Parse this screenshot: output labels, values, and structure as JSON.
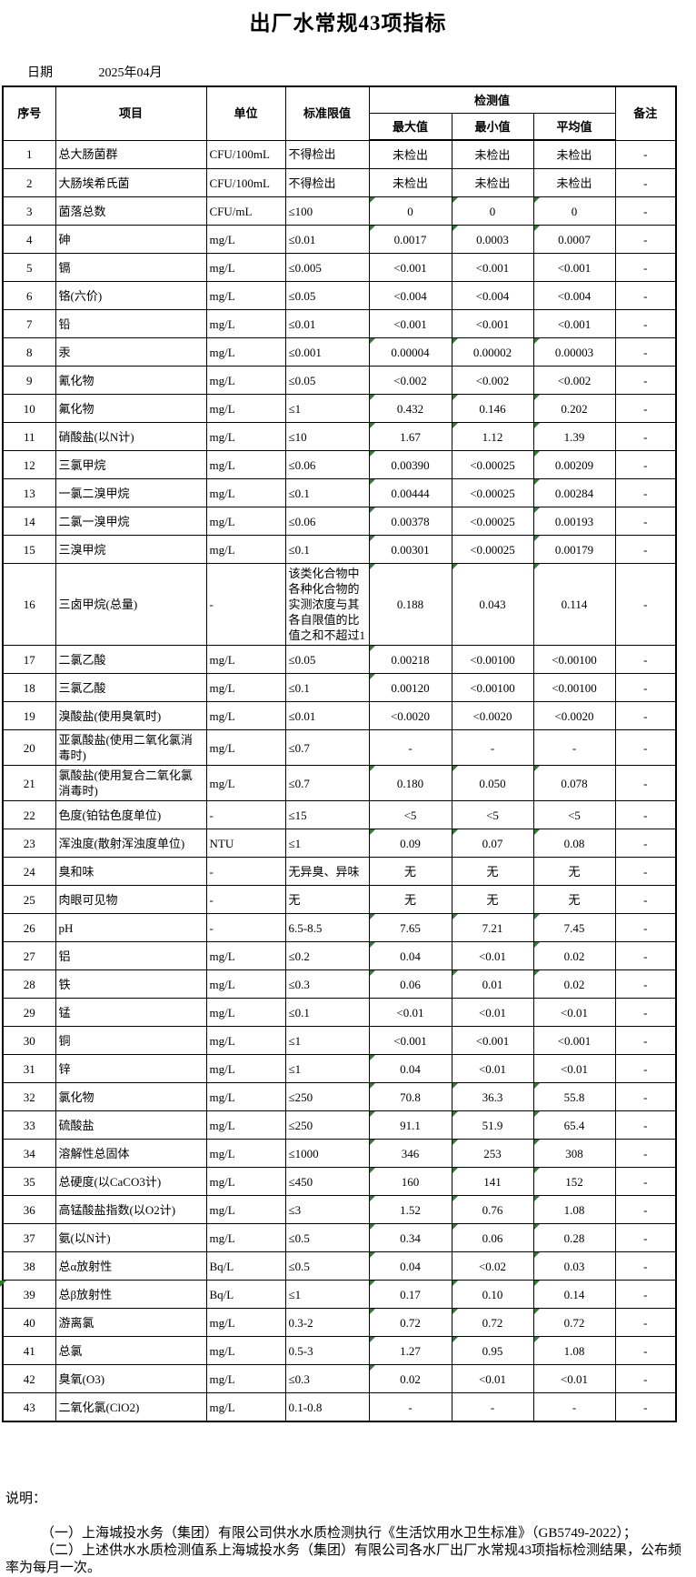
{
  "title": "出厂水常规43项指标",
  "date": {
    "label": "日期",
    "value": "2025年04月"
  },
  "colors": {
    "background": "#ffffff",
    "text": "#000000",
    "border": "#000000",
    "error_marker_green": "#2e7d32"
  },
  "table": {
    "headers": {
      "index": "序号",
      "item": "项目",
      "unit": "单位",
      "limit": "标准限值",
      "detection": "检测值",
      "max": "最大值",
      "min": "最小值",
      "avg": "平均值",
      "remark": "备注"
    },
    "rows": [
      {
        "no": "1",
        "item": "总大肠菌群",
        "unit": "CFU/100mL",
        "limit": "不得检出",
        "max": "未检出",
        "min": "未检出",
        "avg": "未检出",
        "remark": "-"
      },
      {
        "no": "2",
        "item": "大肠埃希氏菌",
        "unit": "CFU/100mL",
        "limit": "不得检出",
        "max": "未检出",
        "min": "未检出",
        "avg": "未检出",
        "remark": "-"
      },
      {
        "no": "3",
        "item": "菌落总数",
        "unit": "CFU/mL",
        "limit": "≤100",
        "max": "0",
        "min": "0",
        "avg": "0",
        "remark": "-"
      },
      {
        "no": "4",
        "item": "砷",
        "unit": "mg/L",
        "limit": "≤0.01",
        "max": "0.0017",
        "min": "0.0003",
        "avg": "0.0007",
        "remark": "-"
      },
      {
        "no": "5",
        "item": "镉",
        "unit": "mg/L",
        "limit": "≤0.005",
        "max": "<0.001",
        "min": "<0.001",
        "avg": "<0.001",
        "remark": "-"
      },
      {
        "no": "6",
        "item": "铬(六价)",
        "unit": "mg/L",
        "limit": "≤0.05",
        "max": "<0.004",
        "min": "<0.004",
        "avg": "<0.004",
        "remark": "-"
      },
      {
        "no": "7",
        "item": "铅",
        "unit": "mg/L",
        "limit": "≤0.01",
        "max": "<0.001",
        "min": "<0.001",
        "avg": "<0.001",
        "remark": "-"
      },
      {
        "no": "8",
        "item": "汞",
        "unit": "mg/L",
        "limit": "≤0.001",
        "max": "0.00004",
        "min": "0.00002",
        "avg": "0.00003",
        "remark": "-"
      },
      {
        "no": "9",
        "item": "氰化物",
        "unit": "mg/L",
        "limit": "≤0.05",
        "max": "<0.002",
        "min": "<0.002",
        "avg": "<0.002",
        "remark": "-"
      },
      {
        "no": "10",
        "item": "氟化物",
        "unit": "mg/L",
        "limit": "≤1",
        "max": "0.432",
        "min": "0.146",
        "avg": "0.202",
        "remark": "-"
      },
      {
        "no": "11",
        "item": "硝酸盐(以N计)",
        "unit": "mg/L",
        "limit": "≤10",
        "max": "1.67",
        "min": "1.12",
        "avg": "1.39",
        "remark": "-"
      },
      {
        "no": "12",
        "item": "三氯甲烷",
        "unit": "mg/L",
        "limit": "≤0.06",
        "max": "0.00390",
        "min": "<0.00025",
        "avg": "0.00209",
        "remark": "-"
      },
      {
        "no": "13",
        "item": "一氯二溴甲烷",
        "unit": "mg/L",
        "limit": "≤0.1",
        "max": "0.00444",
        "min": "<0.00025",
        "avg": "0.00284",
        "remark": "-"
      },
      {
        "no": "14",
        "item": "二氯一溴甲烷",
        "unit": "mg/L",
        "limit": "≤0.06",
        "max": "0.00378",
        "min": "<0.00025",
        "avg": "0.00193",
        "remark": "-"
      },
      {
        "no": "15",
        "item": "三溴甲烷",
        "unit": "mg/L",
        "limit": "≤0.1",
        "max": "0.00301",
        "min": "<0.00025",
        "avg": "0.00179",
        "remark": "-"
      },
      {
        "no": "16",
        "item": "三卤甲烷(总量)",
        "unit": "-",
        "limit": "该类化合物中各种化合物的实测浓度与其各自限值的比值之和不超过1",
        "max": "0.188",
        "min": "0.043",
        "avg": "0.114",
        "remark": "-"
      },
      {
        "no": "17",
        "item": "二氯乙酸",
        "unit": "mg/L",
        "limit": "≤0.05",
        "max": "0.00218",
        "min": "<0.00100",
        "avg": "<0.00100",
        "remark": "-"
      },
      {
        "no": "18",
        "item": "三氯乙酸",
        "unit": "mg/L",
        "limit": "≤0.1",
        "max": "0.00120",
        "min": "<0.00100",
        "avg": "<0.00100",
        "remark": "-"
      },
      {
        "no": "19",
        "item": "溴酸盐(使用臭氧时)",
        "unit": "mg/L",
        "limit": "≤0.01",
        "max": "<0.0020",
        "min": "<0.0020",
        "avg": "<0.0020",
        "remark": "-"
      },
      {
        "no": "20",
        "item": "亚氯酸盐(使用二氧化氯消毒时)",
        "unit": "mg/L",
        "limit": "≤0.7",
        "max": "-",
        "min": "-",
        "avg": "-",
        "remark": "-"
      },
      {
        "no": "21",
        "item": "氯酸盐(使用复合二氧化氯消毒时)",
        "unit": "mg/L",
        "limit": "≤0.7",
        "max": "0.180",
        "min": "0.050",
        "avg": "0.078",
        "remark": "-"
      },
      {
        "no": "22",
        "item": "色度(铂钴色度单位)",
        "unit": "-",
        "limit": "≤15",
        "max": "<5",
        "min": "<5",
        "avg": "<5",
        "remark": "-"
      },
      {
        "no": "23",
        "item": "浑浊度(散射浑浊度单位)",
        "unit": "NTU",
        "limit": "≤1",
        "max": "0.09",
        "min": "0.07",
        "avg": "0.08",
        "remark": "-"
      },
      {
        "no": "24",
        "item": "臭和味",
        "unit": "-",
        "limit": "无异臭、异味",
        "max": "无",
        "min": "无",
        "avg": "无",
        "remark": "-"
      },
      {
        "no": "25",
        "item": "肉眼可见物",
        "unit": "-",
        "limit": "无",
        "max": "无",
        "min": "无",
        "avg": "无",
        "remark": "-"
      },
      {
        "no": "26",
        "item": "pH",
        "unit": "-",
        "limit": "6.5-8.5",
        "max": "7.65",
        "min": "7.21",
        "avg": "7.45",
        "remark": "-"
      },
      {
        "no": "27",
        "item": "铝",
        "unit": "mg/L",
        "limit": "≤0.2",
        "max": "0.04",
        "min": "<0.01",
        "avg": "0.02",
        "remark": "-"
      },
      {
        "no": "28",
        "item": "铁",
        "unit": "mg/L",
        "limit": "≤0.3",
        "max": "0.06",
        "min": "0.01",
        "avg": "0.02",
        "remark": "-"
      },
      {
        "no": "29",
        "item": "锰",
        "unit": "mg/L",
        "limit": "≤0.1",
        "max": "<0.01",
        "min": "<0.01",
        "avg": "<0.01",
        "remark": "-"
      },
      {
        "no": "30",
        "item": "铜",
        "unit": "mg/L",
        "limit": "≤1",
        "max": "<0.001",
        "min": "<0.001",
        "avg": "<0.001",
        "remark": "-"
      },
      {
        "no": "31",
        "item": "锌",
        "unit": "mg/L",
        "limit": "≤1",
        "max": "0.04",
        "min": "<0.01",
        "avg": "<0.01",
        "remark": "-"
      },
      {
        "no": "32",
        "item": "氯化物",
        "unit": "mg/L",
        "limit": "≤250",
        "max": "70.8",
        "min": "36.3",
        "avg": "55.8",
        "remark": "-"
      },
      {
        "no": "33",
        "item": "硫酸盐",
        "unit": "mg/L",
        "limit": "≤250",
        "max": "91.1",
        "min": "51.9",
        "avg": "65.4",
        "remark": "-"
      },
      {
        "no": "34",
        "item": "溶解性总固体",
        "unit": "mg/L",
        "limit": "≤1000",
        "max": "346",
        "min": "253",
        "avg": "308",
        "remark": "-"
      },
      {
        "no": "35",
        "item": "总硬度(以CaCO3计)",
        "unit": "mg/L",
        "limit": "≤450",
        "max": "160",
        "min": "141",
        "avg": "152",
        "remark": "-"
      },
      {
        "no": "36",
        "item": "高锰酸盐指数(以O2计)",
        "unit": "mg/L",
        "limit": "≤3",
        "max": "1.52",
        "min": "0.76",
        "avg": "1.08",
        "remark": "-"
      },
      {
        "no": "37",
        "item": "氨(以N计)",
        "unit": "mg/L",
        "limit": "≤0.5",
        "max": "0.34",
        "min": "0.06",
        "avg": "0.28",
        "remark": "-"
      },
      {
        "no": "38",
        "item": "总α放射性",
        "unit": "Bq/L",
        "limit": "≤0.5",
        "max": "0.04",
        "min": "<0.02",
        "avg": "0.03",
        "remark": "-"
      },
      {
        "no": "39",
        "item": "总β放射性",
        "unit": "Bq/L",
        "limit": "≤1",
        "max": "0.17",
        "min": "0.10",
        "avg": "0.14",
        "remark": "-"
      },
      {
        "no": "40",
        "item": "游离氯",
        "unit": "mg/L",
        "limit": "0.3-2",
        "max": "0.72",
        "min": "0.72",
        "avg": "0.72",
        "remark": "-"
      },
      {
        "no": "41",
        "item": "总氯",
        "unit": "mg/L",
        "limit": "0.5-3",
        "max": "1.27",
        "min": "0.95",
        "avg": "1.08",
        "remark": "-"
      },
      {
        "no": "42",
        "item": "臭氧(O3)",
        "unit": "mg/L",
        "limit": "≤0.3",
        "max": "0.02",
        "min": "<0.01",
        "avg": "<0.01",
        "remark": "-"
      },
      {
        "no": "43",
        "item": "二氧化氯(ClO2)",
        "unit": "mg/L",
        "limit": "0.1-0.8",
        "max": "-",
        "min": "-",
        "avg": "-",
        "remark": "-"
      }
    ]
  },
  "notes": {
    "heading": "说明：",
    "lines": [
      "（一）上海城投水务（集团）有限公司供水水质检测执行《生活饮用水卫生标准》（GB5749-2022）；",
      "（二）上述供水水质检测值系上海城投水务（集团）有限公司各水厂出厂水常规43项指标检测结果，公布频率为每月一次。"
    ]
  }
}
